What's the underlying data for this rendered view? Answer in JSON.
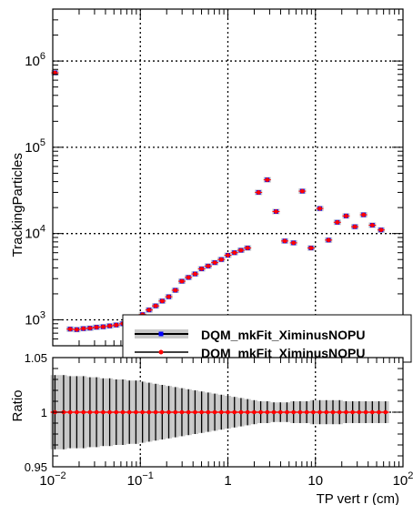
{
  "chart_data": [
    {
      "type": "scatter",
      "panel": "main",
      "ylabel": "TrackingParticles",
      "xscale": "log",
      "yscale": "log",
      "xlim": [
        0.01,
        100
      ],
      "ylim": [
        500,
        4000000
      ],
      "grid": true,
      "y_tick_labels": [
        {
          "value": 1000,
          "base": "10",
          "exp": "3"
        },
        {
          "value": 10000,
          "base": "10",
          "exp": "4"
        },
        {
          "value": 100000,
          "base": "10",
          "exp": "5"
        },
        {
          "value": 1000000,
          "base": "10",
          "exp": "6"
        }
      ],
      "legend": {
        "placement": "bottom-right",
        "entries": [
          "DQM_mkFit_XiminusNOPU",
          "DQM_mkFit_XiminusNOPU"
        ]
      },
      "series": [
        {
          "name": "DQM_mkFit_XiminusNOPU",
          "color": "#0000ff",
          "marker": "square",
          "band_color": "#c8c8c8",
          "x": [
            0.0106,
            0.0158,
            0.0188,
            0.0224,
            0.0266,
            0.0316,
            0.0376,
            0.0447,
            0.0531,
            0.0631,
            0.075,
            0.0891,
            0.1059,
            0.1259,
            0.1496,
            0.1778,
            0.2113,
            0.2512,
            0.2985,
            0.3548,
            0.4217,
            0.5012,
            0.5957,
            0.7079,
            0.8414,
            1.0,
            1.1885,
            1.4125,
            1.6788,
            2.2387,
            2.8184,
            3.5481,
            4.4668,
            5.6234,
            7.0795,
            8.9125,
            11.22,
            14.125,
            17.783,
            22.387,
            28.184,
            35.481,
            44.668,
            56.234
          ],
          "y": [
            730000,
            780,
            770,
            790,
            800,
            820,
            830,
            850,
            870,
            900,
            950,
            1050,
            1150,
            1300,
            1450,
            1650,
            1850,
            2200,
            2800,
            3100,
            3400,
            3900,
            4200,
            4600,
            5000,
            5600,
            6000,
            6400,
            6800,
            30000,
            42000,
            18000,
            8200,
            7800,
            31000,
            6800,
            19500,
            8400,
            13500,
            16000,
            12000,
            16500,
            12500,
            11000
          ]
        },
        {
          "name": "DQM_mkFit_XiminusNOPU",
          "color": "#ff0000",
          "marker": "circle",
          "x": [
            0.0106,
            0.0158,
            0.0188,
            0.0224,
            0.0266,
            0.0316,
            0.0376,
            0.0447,
            0.0531,
            0.0631,
            0.075,
            0.0891,
            0.1059,
            0.1259,
            0.1496,
            0.1778,
            0.2113,
            0.2512,
            0.2985,
            0.3548,
            0.4217,
            0.5012,
            0.5957,
            0.7079,
            0.8414,
            1.0,
            1.1885,
            1.4125,
            1.6788,
            2.2387,
            2.8184,
            3.5481,
            4.4668,
            5.6234,
            7.0795,
            8.9125,
            11.22,
            14.125,
            17.783,
            22.387,
            28.184,
            35.481,
            44.668,
            56.234
          ],
          "y": [
            730000,
            780,
            770,
            790,
            800,
            820,
            830,
            850,
            870,
            900,
            950,
            1050,
            1150,
            1300,
            1450,
            1650,
            1850,
            2200,
            2800,
            3100,
            3400,
            3900,
            4200,
            4600,
            5000,
            5600,
            6000,
            6400,
            6800,
            30000,
            42000,
            18000,
            8200,
            7800,
            31000,
            6800,
            19500,
            8400,
            13500,
            16000,
            12000,
            16500,
            12500,
            11000
          ]
        }
      ]
    },
    {
      "type": "scatter",
      "panel": "ratio",
      "xlabel": "TP vert r (cm)",
      "ylabel": "Ratio",
      "xscale": "log",
      "xlim": [
        0.01,
        100
      ],
      "ylim": [
        0.95,
        1.05
      ],
      "grid": true,
      "x_tick_labels": [
        {
          "value": 0.01,
          "base": "10",
          "exp": "−2"
        },
        {
          "value": 0.1,
          "base": "10",
          "exp": "−1"
        },
        {
          "value": 1,
          "base": "1",
          "exp": ""
        },
        {
          "value": 10,
          "base": "10",
          "exp": ""
        },
        {
          "value": 100,
          "base": "10",
          "exp": "2"
        }
      ],
      "y_tick_labels": [
        {
          "value": 0.95,
          "label": "0.95"
        },
        {
          "value": 1,
          "label": "1"
        },
        {
          "value": 1.05,
          "label": "1.05"
        }
      ],
      "x": [
        0.0106,
        0.0133,
        0.0158,
        0.0188,
        0.0224,
        0.0266,
        0.0316,
        0.0376,
        0.0447,
        0.0531,
        0.0631,
        0.075,
        0.0891,
        0.1059,
        0.1259,
        0.1496,
        0.1778,
        0.2113,
        0.2512,
        0.2985,
        0.3548,
        0.4217,
        0.5012,
        0.5957,
        0.7079,
        0.8414,
        1.0,
        1.1885,
        1.4125,
        1.6788,
        1.9953,
        2.3714,
        2.8184,
        3.3497,
        3.981,
        4.7315,
        5.6234,
        6.6834,
        7.9433,
        9.4406,
        11.22,
        13.335,
        15.849,
        18.836,
        22.387,
        26.607,
        31.623,
        37.584,
        44.668,
        53.088,
        63.096
      ],
      "values": [
        1,
        1,
        1,
        1,
        1,
        1,
        1,
        1,
        1,
        1,
        1,
        1,
        1,
        1,
        1,
        1,
        1,
        1,
        1,
        1,
        1,
        1,
        1,
        1,
        1,
        1,
        1,
        1,
        1,
        1,
        1,
        1,
        1,
        1,
        1,
        1,
        1,
        1,
        1,
        1,
        1,
        1,
        1,
        1,
        1,
        1,
        1,
        1,
        1,
        1,
        1
      ],
      "band_halfwidth": [
        0.034,
        0.034,
        0.033,
        0.033,
        0.033,
        0.032,
        0.032,
        0.031,
        0.031,
        0.03,
        0.03,
        0.029,
        0.029,
        0.028,
        0.027,
        0.026,
        0.025,
        0.024,
        0.023,
        0.022,
        0.021,
        0.02,
        0.019,
        0.018,
        0.017,
        0.016,
        0.015,
        0.014,
        0.013,
        0.012,
        0.011,
        0.01,
        0.01,
        0.009,
        0.009,
        0.009,
        0.01,
        0.01,
        0.01,
        0.011,
        0.011,
        0.011,
        0.011,
        0.011,
        0.01,
        0.01,
        0.01,
        0.01,
        0.01,
        0.01,
        0.01
      ],
      "color": "#ff0000",
      "band_color": "#c8c8c8"
    }
  ]
}
